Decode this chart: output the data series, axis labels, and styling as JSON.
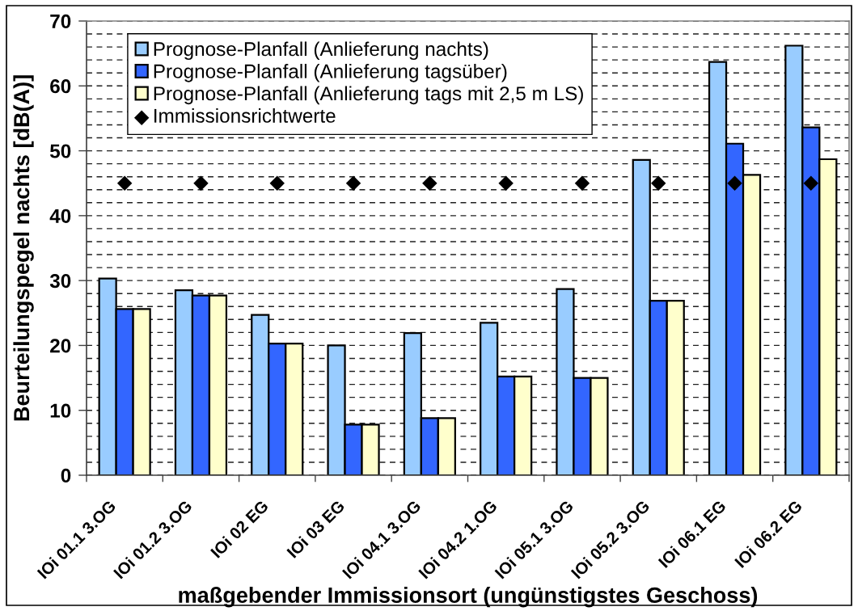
{
  "chart_data": {
    "type": "bar",
    "xlabel": "maßgebender Immissionsort (ungünstigstes Geschoss)",
    "ylabel": "Beurteilungspegel nachts [dB(A)]",
    "categories": [
      "IOi 01.1 3.OG",
      "IOi 01.2 3.OG",
      "IOi 02 EG",
      "IOi 03 EG",
      "IOi 04.1 3.OG",
      "IOi 04.2 1.OG",
      "IOi 05.1 3.OG",
      "IOi 05.2 3.OG",
      "IOi 06.1 EG",
      "IOi 06.2 EG"
    ],
    "series": [
      {
        "name": "Prognose-Planfall (Anlieferung nachts)",
        "color": "#99ccff",
        "values": [
          30.3,
          28.5,
          24.7,
          20.0,
          21.9,
          23.5,
          28.7,
          48.6,
          63.7,
          66.2
        ]
      },
      {
        "name": "Prognose-Planfall (Anlieferung tagsüber)",
        "color": "#3366ff",
        "values": [
          25.6,
          27.7,
          20.3,
          7.8,
          8.8,
          15.2,
          15.0,
          26.9,
          51.1,
          53.6
        ]
      },
      {
        "name": "Prognose-Planfall (Anlieferung tags mit 2,5 m LS)",
        "color": "#ffffcc",
        "values": [
          25.6,
          27.7,
          20.3,
          7.8,
          8.8,
          15.2,
          15.0,
          26.9,
          46.3,
          48.7
        ]
      },
      {
        "name": "Immissionsrichtwerte",
        "type": "scatter",
        "color": "#000000",
        "marker": "diamond",
        "x": [
          "IOi 01.1 3.OG",
          "IOi 01.2 3.OG",
          "IOi 02 EG",
          "IOi 03 EG",
          "IOi 04.1 3.OG",
          "IOi 04.2 1.OG",
          "IOi 05.1 3.OG",
          "IOi 05.2 3.OG",
          "IOi 06.1 EG",
          "IOi 06.2 EG"
        ],
        "values": [
          45,
          45,
          45,
          45,
          45,
          45,
          45,
          45,
          45,
          45
        ]
      }
    ],
    "ylim": [
      0,
      70
    ],
    "yticks": [
      0,
      {
        "value": 2,
        "label": null
      },
      {
        "value": 4,
        "label": null
      },
      {
        "value": 6,
        "label": null
      },
      {
        "value": 8,
        "label": null
      },
      10,
      {
        "value": 12,
        "label": null
      },
      {
        "value": 14,
        "label": null
      },
      {
        "value": 16,
        "label": null
      },
      {
        "value": 18,
        "label": null
      },
      20,
      {
        "value": 22,
        "label": null
      },
      {
        "value": 24,
        "label": null
      },
      {
        "value": 26,
        "label": null
      },
      {
        "value": 28,
        "label": null
      },
      30,
      {
        "value": 32,
        "label": null
      },
      {
        "value": 34,
        "label": null
      },
      {
        "value": 36,
        "label": null
      },
      {
        "value": 38,
        "label": null
      },
      40,
      {
        "value": 42,
        "label": null
      },
      {
        "value": 44,
        "label": null
      },
      {
        "value": 46,
        "label": null
      },
      {
        "value": 48,
        "label": null
      },
      50,
      {
        "value": 52,
        "label": null
      },
      {
        "value": 54,
        "label": null
      },
      {
        "value": 56,
        "label": null
      },
      {
        "value": 58,
        "label": null
      },
      60,
      {
        "value": 62,
        "label": null
      },
      {
        "value": 64,
        "label": null
      },
      {
        "value": 66,
        "label": null
      },
      {
        "value": 68,
        "label": null
      },
      70
    ],
    "grid": "y",
    "legend": "top left"
  }
}
